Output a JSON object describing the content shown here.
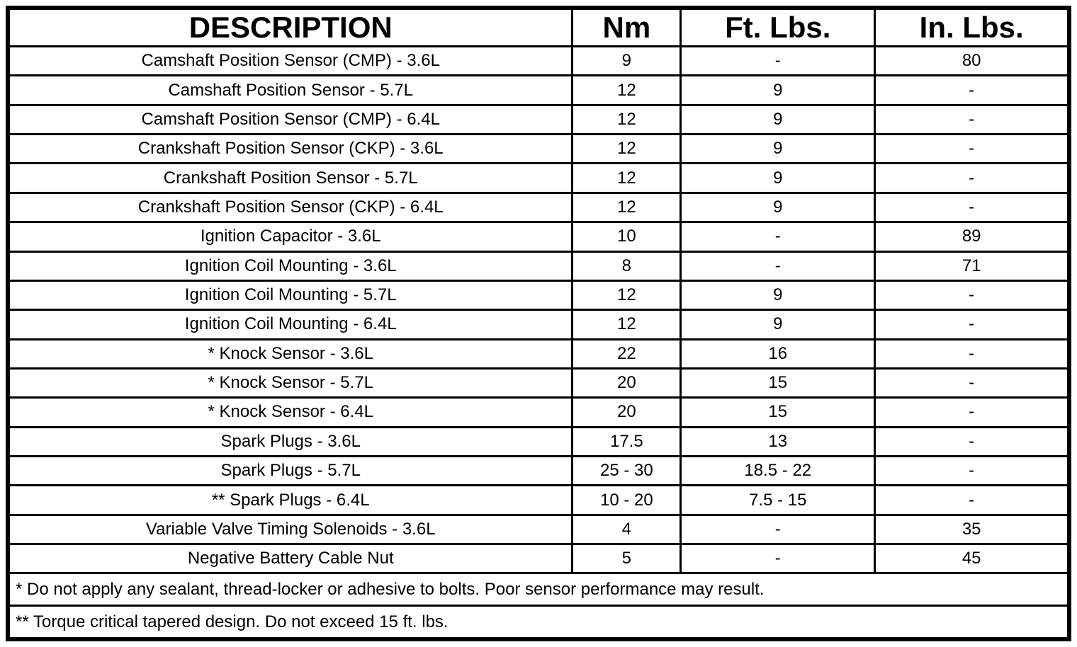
{
  "table": {
    "columns": [
      "DESCRIPTION",
      "Nm",
      "Ft. Lbs.",
      "In. Lbs."
    ],
    "rows": [
      {
        "description": "Camshaft Position Sensor (CMP) - 3.6L",
        "nm": "9",
        "ft_lbs": "-",
        "in_lbs": "80"
      },
      {
        "description": "Camshaft Position Sensor - 5.7L",
        "nm": "12",
        "ft_lbs": "9",
        "in_lbs": "-"
      },
      {
        "description": "Camshaft Position Sensor (CMP) - 6.4L",
        "nm": "12",
        "ft_lbs": "9",
        "in_lbs": "-"
      },
      {
        "description": "Crankshaft Position Sensor (CKP) - 3.6L",
        "nm": "12",
        "ft_lbs": "9",
        "in_lbs": "-"
      },
      {
        "description": "Crankshaft Position Sensor - 5.7L",
        "nm": "12",
        "ft_lbs": "9",
        "in_lbs": "-"
      },
      {
        "description": "Crankshaft Position Sensor (CKP) - 6.4L",
        "nm": "12",
        "ft_lbs": "9",
        "in_lbs": "-"
      },
      {
        "description": "Ignition Capacitor - 3.6L",
        "nm": "10",
        "ft_lbs": "-",
        "in_lbs": "89"
      },
      {
        "description": "Ignition Coil Mounting - 3.6L",
        "nm": "8",
        "ft_lbs": "-",
        "in_lbs": "71"
      },
      {
        "description": "Ignition Coil Mounting - 5.7L",
        "nm": "12",
        "ft_lbs": "9",
        "in_lbs": "-"
      },
      {
        "description": "Ignition Coil Mounting - 6.4L",
        "nm": "12",
        "ft_lbs": "9",
        "in_lbs": "-"
      },
      {
        "description": "* Knock Sensor - 3.6L",
        "nm": "22",
        "ft_lbs": "16",
        "in_lbs": "-"
      },
      {
        "description": "* Knock Sensor - 5.7L",
        "nm": "20",
        "ft_lbs": "15",
        "in_lbs": "-"
      },
      {
        "description": "* Knock Sensor - 6.4L",
        "nm": "20",
        "ft_lbs": "15",
        "in_lbs": "-"
      },
      {
        "description": "Spark Plugs - 3.6L",
        "nm": "17.5",
        "ft_lbs": "13",
        "in_lbs": "-"
      },
      {
        "description": "Spark Plugs - 5.7L",
        "nm": "25 - 30",
        "ft_lbs": "18.5 - 22",
        "in_lbs": "-"
      },
      {
        "description": "** Spark Plugs - 6.4L",
        "nm": "10 - 20",
        "ft_lbs": "7.5 - 15",
        "in_lbs": "-"
      },
      {
        "description": "Variable Valve Timing Solenoids - 3.6L",
        "nm": "4",
        "ft_lbs": "-",
        "in_lbs": "35"
      },
      {
        "description": "Negative Battery Cable Nut",
        "nm": "5",
        "ft_lbs": "-",
        "in_lbs": "45"
      }
    ],
    "footnotes": [
      "* Do not apply any sealant, thread-locker or adhesive to bolts. Poor sensor performance may result.",
      "** Torque critical tapered design. Do not exceed 15 ft. lbs."
    ]
  },
  "colors": {
    "border": "#000000",
    "text": "#000000",
    "background": "#ffffff"
  }
}
